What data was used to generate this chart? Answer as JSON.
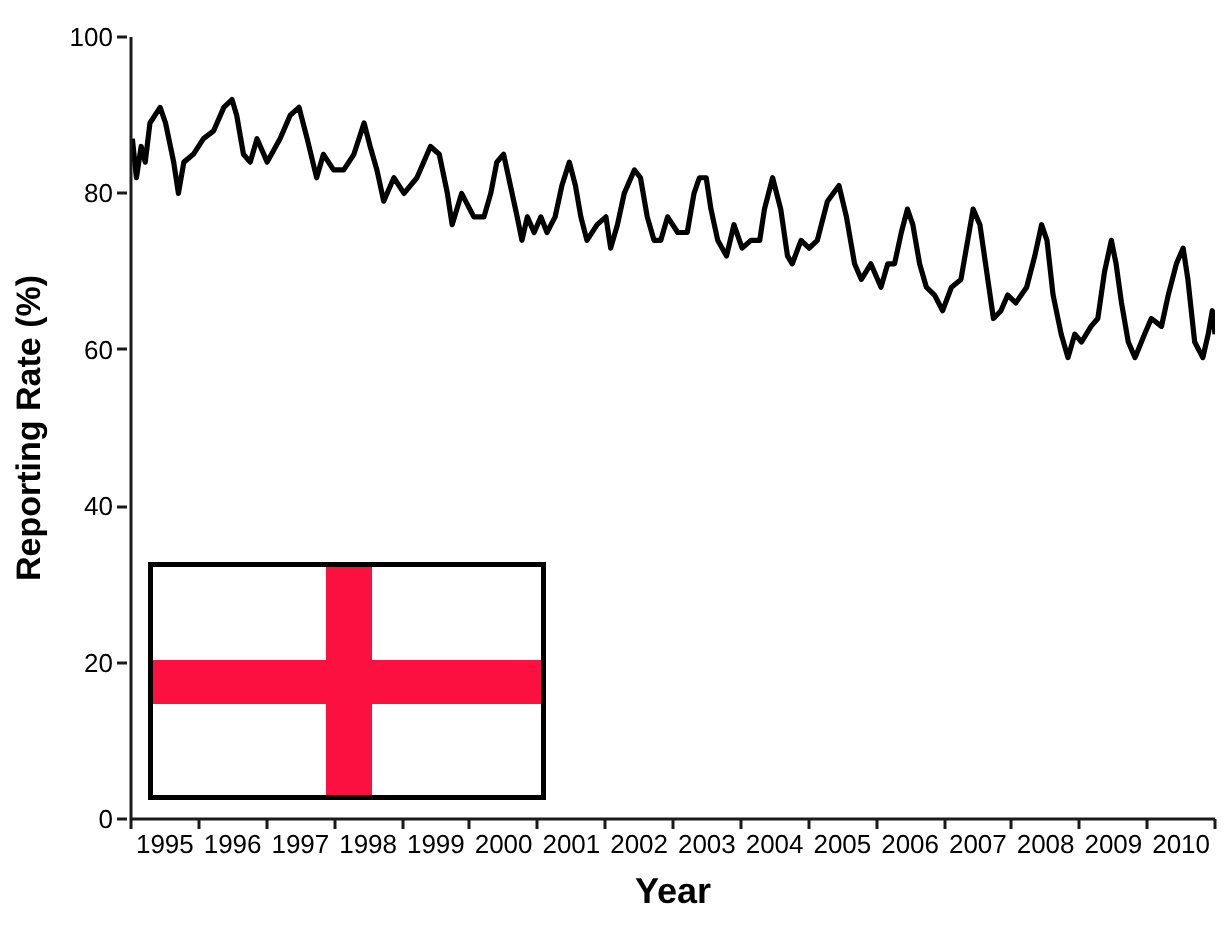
{
  "chart_data": {
    "type": "line",
    "xlabel": "Year",
    "ylabel": "Reporting Rate (%)",
    "color": "#000000",
    "line_style": "solid",
    "xlim": [
      1994.5,
      2010.5
    ],
    "ylim": [
      0,
      100
    ],
    "yticks": [
      0,
      20,
      40,
      60,
      80,
      100
    ],
    "xticks": [
      {
        "value": 1994.5,
        "label": null
      },
      1995,
      {
        "value": 1995.5,
        "label": null
      },
      1996,
      {
        "value": 1996.5,
        "label": null
      },
      1997,
      {
        "value": 1997.5,
        "label": null
      },
      1998,
      {
        "value": 1998.5,
        "label": null
      },
      1999,
      {
        "value": 1999.5,
        "label": null
      },
      2000,
      {
        "value": 2000.5,
        "label": null
      },
      2001,
      {
        "value": 2001.5,
        "label": null
      },
      2002,
      {
        "value": 2002.5,
        "label": null
      },
      2003,
      {
        "value": 2003.5,
        "label": null
      },
      2004,
      {
        "value": 2004.5,
        "label": null
      },
      2005,
      {
        "value": 2005.5,
        "label": null
      },
      2006,
      {
        "value": 2006.5,
        "label": null
      },
      2007,
      {
        "value": 2007.5,
        "label": null
      },
      2008,
      {
        "value": 2008.5,
        "label": null
      },
      2009,
      {
        "value": 2009.5,
        "label": null
      },
      2010,
      {
        "value": 2010.5,
        "label": null
      }
    ],
    "x": [
      1994.52,
      1994.58,
      1994.65,
      1994.71,
      1994.78,
      1994.93,
      1995.01,
      1995.13,
      1995.2,
      1995.28,
      1995.42,
      1995.57,
      1995.72,
      1995.87,
      1995.99,
      1996.06,
      1996.16,
      1996.26,
      1996.36,
      1996.51,
      1996.7,
      1996.85,
      1996.98,
      1997.1,
      1997.24,
      1997.34,
      1997.49,
      1997.64,
      1997.79,
      1997.94,
      1998.03,
      1998.13,
      1998.23,
      1998.38,
      1998.53,
      1998.72,
      1998.92,
      1999.05,
      1999.17,
      1999.24,
      1999.38,
      1999.56,
      1999.71,
      1999.81,
      1999.9,
      2000.0,
      2000.1,
      2000.2,
      2000.27,
      2000.35,
      2000.45,
      2000.55,
      2000.64,
      2000.76,
      2000.86,
      2000.97,
      2001.06,
      2001.14,
      2001.23,
      2001.38,
      2001.51,
      2001.58,
      2001.68,
      2001.78,
      2001.93,
      2002.02,
      2002.12,
      2002.22,
      2002.32,
      2002.42,
      2002.57,
      2002.71,
      2002.81,
      2002.89,
      2002.99,
      2003.06,
      2003.16,
      2003.29,
      2003.4,
      2003.52,
      2003.65,
      2003.78,
      2003.85,
      2003.97,
      2004.09,
      2004.19,
      2004.26,
      2004.39,
      2004.51,
      2004.63,
      2004.78,
      2004.95,
      2005.06,
      2005.18,
      2005.28,
      2005.42,
      2005.57,
      2005.67,
      2005.77,
      2005.87,
      2005.96,
      2006.04,
      2006.14,
      2006.24,
      2006.36,
      2006.48,
      2006.61,
      2006.75,
      2006.85,
      2006.93,
      2007.03,
      2007.13,
      2007.23,
      2007.34,
      2007.44,
      2007.56,
      2007.72,
      2007.84,
      2007.94,
      2008.02,
      2008.11,
      2008.23,
      2008.33,
      2008.43,
      2008.53,
      2008.67,
      2008.77,
      2008.87,
      2008.97,
      2009.04,
      2009.12,
      2009.22,
      2009.32,
      2009.46,
      2009.56,
      2009.71,
      2009.81,
      2009.93,
      2010.03,
      2010.1,
      2010.2,
      2010.32,
      2010.4,
      2010.46,
      2010.5
    ],
    "values": [
      87,
      82,
      86,
      84,
      89,
      91,
      89,
      84,
      80,
      84,
      85,
      87,
      88,
      91,
      92,
      90,
      85,
      84,
      87,
      84,
      87,
      90,
      91,
      87,
      82,
      85,
      83,
      83,
      85,
      89,
      86,
      83,
      79,
      82,
      80,
      82,
      86,
      85,
      80,
      76,
      80,
      77,
      77,
      80,
      84,
      85,
      81,
      77,
      74,
      77,
      75,
      77,
      75,
      77,
      81,
      84,
      81,
      77,
      74,
      76,
      77,
      73,
      76,
      80,
      83,
      82,
      77,
      74,
      74,
      77,
      75,
      75,
      80,
      82,
      82,
      78,
      74,
      72,
      76,
      73,
      74,
      74,
      78,
      82,
      78,
      72,
      71,
      74,
      73,
      74,
      79,
      81,
      77,
      71,
      69,
      71,
      68,
      71,
      71,
      75,
      78,
      76,
      71,
      68,
      67,
      65,
      68,
      69,
      74,
      78,
      76,
      70,
      64,
      65,
      67,
      66,
      68,
      72,
      76,
      74,
      67,
      62,
      59,
      62,
      61,
      63,
      64,
      70,
      74,
      71,
      66,
      61,
      59,
      62,
      64,
      63,
      67,
      71,
      73,
      69,
      61,
      59,
      62,
      65,
      62
    ]
  }
}
